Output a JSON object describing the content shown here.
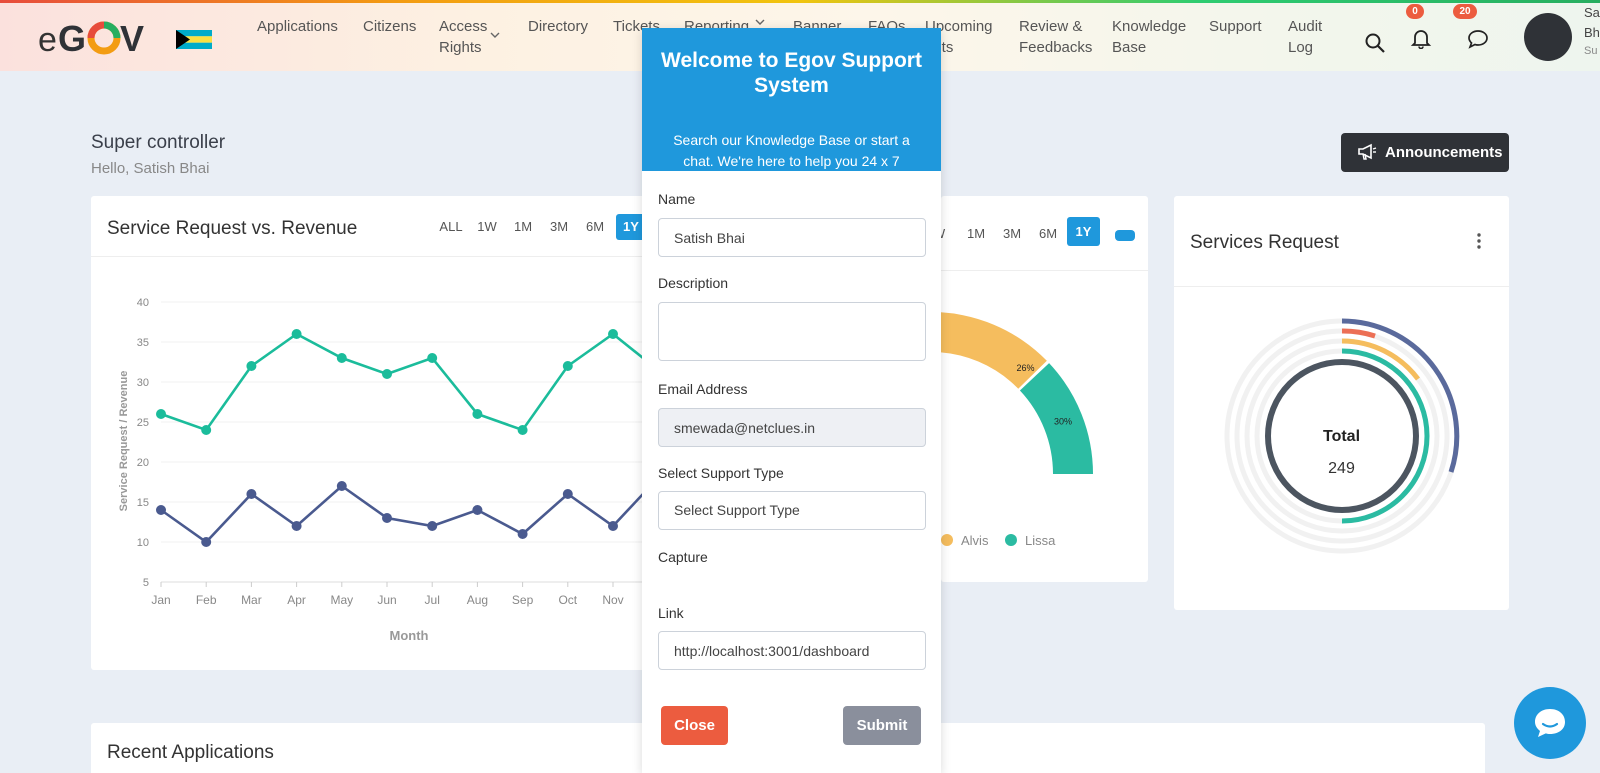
{
  "brand": {
    "logo_text": "eGOV"
  },
  "nav": [
    {
      "label": "Applications"
    },
    {
      "label": "Citizens"
    },
    {
      "label": "Access Rights",
      "line1": "Access",
      "line2": "Rights"
    },
    {
      "label": "Directory"
    },
    {
      "label": "Tickets"
    },
    {
      "label": "Reporting"
    },
    {
      "label": "Banner"
    },
    {
      "label": "FAQs"
    },
    {
      "label": "Upcoming Events",
      "line1": "Upcoming",
      "line2": "ents"
    },
    {
      "label": "Review & Feedbacks",
      "line1": "Review &",
      "line2": "Feedbacks"
    },
    {
      "label": "Knowledge Base",
      "line1": "Knowledge",
      "line2": "Base"
    },
    {
      "label": "Support"
    },
    {
      "label": "Audit Log",
      "line1": "Audit",
      "line2": "Log"
    }
  ],
  "header": {
    "notifications_count": "0",
    "messages_count": "20",
    "user_name_partial": "Sa Bh",
    "user_role_partial": "Su"
  },
  "page": {
    "title": "Super controller",
    "greeting": "Hello, Satish Bhai",
    "announcements_label": "Announcements"
  },
  "chart_card": {
    "title": "Service Request vs. Revenue",
    "ranges": [
      "ALL",
      "1W",
      "1M",
      "3M",
      "6M",
      "1Y"
    ],
    "active_range": "1Y"
  },
  "chart_data": [
    {
      "type": "line",
      "title": "Service Request vs. Revenue",
      "x": [
        "Jan",
        "Feb",
        "Mar",
        "Apr",
        "May",
        "Jun",
        "Jul",
        "Aug",
        "Sep",
        "Oct",
        "Nov"
      ],
      "xlabel": "Month",
      "ylabel": "Service Request / Revenue",
      "ylim": [
        5,
        40
      ],
      "yticks": [
        5,
        10,
        15,
        20,
        25,
        30,
        35,
        40
      ],
      "grid": true,
      "series": [
        {
          "color": "#1bbc9b",
          "values": [
            26,
            24,
            32,
            36,
            33,
            31,
            33,
            26,
            24,
            32,
            36
          ]
        },
        {
          "color": "#4a5a8f",
          "values": [
            14,
            10,
            16,
            12,
            17,
            13,
            12,
            14,
            11,
            16,
            12
          ]
        }
      ]
    },
    {
      "type": "pie",
      "slices": [
        {
          "name": "Alvis",
          "value": 26,
          "label": "26%",
          "color": "#f5bd5e"
        },
        {
          "name": "Lissa",
          "value": 30,
          "label": "30%",
          "color": "#2bbba2"
        }
      ]
    }
  ],
  "middle_card": {
    "ranges": [
      "W",
      "1M",
      "3M",
      "6M",
      "1Y"
    ],
    "active_range": "1Y"
  },
  "services_card": {
    "title": "Services Request",
    "total_label": "Total",
    "total_value": "249"
  },
  "recent": {
    "title": "Recent Applications"
  },
  "modal": {
    "title": "Welcome to Egov Support System",
    "description": "Search our Knowledge Base or start a chat. We're here to help you 24 x 7",
    "name_label": "Name",
    "name_value": "Satish Bhai",
    "description_label": "Description",
    "description_value": "",
    "email_label": "Email Address",
    "email_value": "smewada@netclues.in",
    "support_type_label": "Select Support Type",
    "support_type_value": "Select Support Type",
    "capture_label": "Capture",
    "link_label": "Link",
    "link_value": "http://localhost:3001/dashboard",
    "close_label": "Close",
    "submit_label": "Submit"
  },
  "colors": {
    "accent": "#1f98dc",
    "close": "#ec5c3f",
    "submit": "#8a8f9c",
    "dark": "#2f3237"
  }
}
